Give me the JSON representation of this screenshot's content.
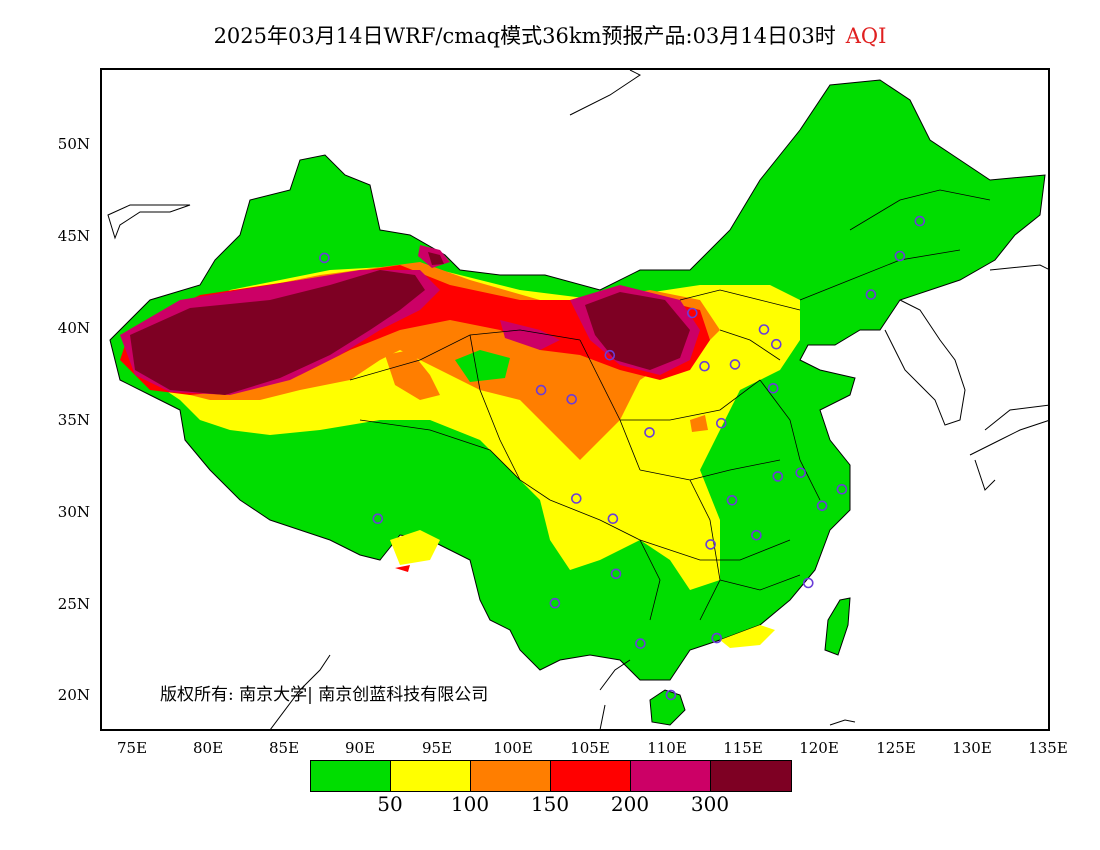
{
  "title": {
    "main": "2025年03月14日WRF/cmaq模式36km预报产品:03月14日03时",
    "variable": "AQI"
  },
  "axes": {
    "lat_labels": [
      "50N",
      "45N",
      "40N",
      "35N",
      "30N",
      "25N",
      "20N"
    ],
    "lon_labels": [
      "75E",
      "80E",
      "85E",
      "90E",
      "95E",
      "100E",
      "105E",
      "110E",
      "115E",
      "120E",
      "125E",
      "130E",
      "135E"
    ],
    "lat_values": [
      50,
      45,
      40,
      35,
      30,
      25,
      20
    ],
    "lon_values": [
      75,
      80,
      85,
      90,
      95,
      100,
      105,
      110,
      115,
      120,
      125,
      130,
      135
    ],
    "lon_range": [
      73,
      135
    ],
    "lat_range": [
      18,
      54
    ]
  },
  "copyright": "版权所有: 南京大学| 南京创蓝科技有限公司",
  "legend": {
    "colors": [
      "#00dd00",
      "#ffff00",
      "#ff7e00",
      "#ff0000",
      "#cc0066",
      "#7e0023"
    ],
    "labels": [
      "50",
      "100",
      "150",
      "200",
      "300"
    ]
  },
  "stations": [
    [
      87.6,
      43.8
    ],
    [
      91.1,
      29.6
    ],
    [
      101.8,
      36.6
    ],
    [
      103.8,
      36.1
    ],
    [
      106.3,
      38.5
    ],
    [
      104.1,
      30.7
    ],
    [
      106.5,
      29.6
    ],
    [
      106.7,
      26.6
    ],
    [
      102.7,
      25.0
    ],
    [
      108.9,
      34.3
    ],
    [
      111.7,
      40.8
    ],
    [
      112.5,
      37.9
    ],
    [
      114.5,
      38.0
    ],
    [
      116.4,
      39.9
    ],
    [
      117.2,
      39.1
    ],
    [
      117.0,
      36.7
    ],
    [
      113.6,
      34.8
    ],
    [
      114.3,
      30.6
    ],
    [
      112.9,
      28.2
    ],
    [
      115.9,
      28.7
    ],
    [
      117.3,
      31.9
    ],
    [
      118.8,
      32.1
    ],
    [
      120.2,
      30.3
    ],
    [
      121.5,
      31.2
    ],
    [
      119.3,
      26.1
    ],
    [
      113.3,
      23.1
    ],
    [
      108.3,
      22.8
    ],
    [
      110.3,
      20.0
    ],
    [
      123.4,
      41.8
    ],
    [
      125.3,
      43.9
    ],
    [
      126.6,
      45.8
    ]
  ]
}
